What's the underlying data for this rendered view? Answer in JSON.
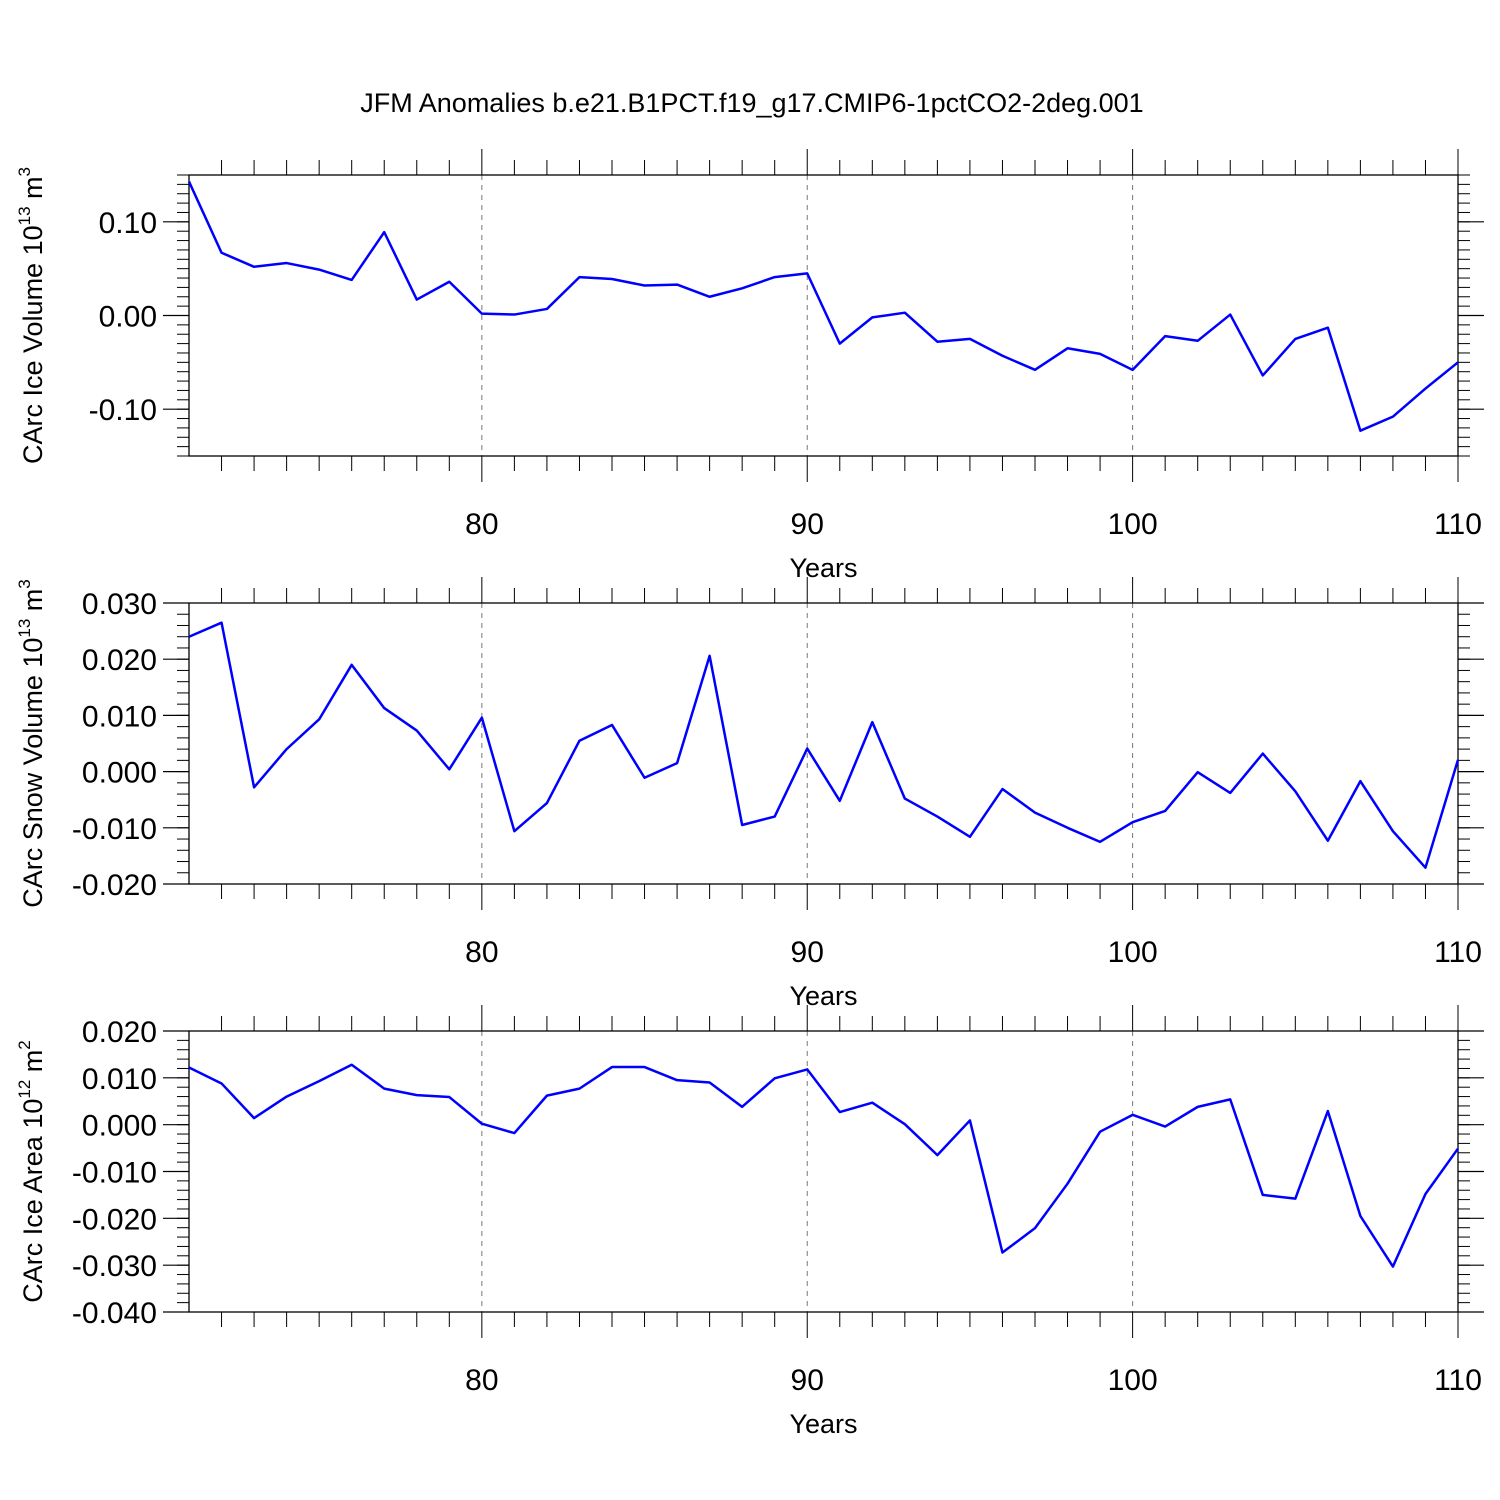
{
  "title": "JFM Anomalies b.e21.B1PCT.f19_g17.CMIP6-1pctCO2-2deg.001",
  "colors": {
    "line": "#0000ff",
    "axis": "#000000",
    "grid": "#777777"
  },
  "chart_data": [
    {
      "type": "line",
      "ylabel": "CArc Ice Volume 10",
      "ylabel_exp": "13",
      "ylabel_unit": " m",
      "ylabel_unit_exp": "3",
      "xlabel": "Years",
      "xlim": [
        71,
        110
      ],
      "ylim": [
        -0.15,
        0.15
      ],
      "xticks": [
        {
          "v": 80,
          "label": "80"
        },
        {
          "v": 90,
          "label": "90"
        },
        {
          "v": 100,
          "label": "100"
        },
        {
          "v": 110,
          "label": "110"
        }
      ],
      "yticks": [
        {
          "v": 0.1,
          "label": "0.10"
        },
        {
          "v": 0.0,
          "label": "0.00"
        },
        {
          "v": -0.1,
          "label": "-0.10"
        }
      ],
      "grid_x": [
        80,
        90,
        100
      ],
      "x": [
        71,
        72,
        73,
        74,
        75,
        76,
        77,
        78,
        79,
        80,
        81,
        82,
        83,
        84,
        85,
        86,
        87,
        88,
        89,
        90,
        91,
        92,
        93,
        94,
        95,
        96,
        97,
        98,
        99,
        100,
        101,
        102,
        103,
        104,
        105,
        106,
        107,
        108,
        109,
        110
      ],
      "series": [
        {
          "values": [
            0.143,
            0.067,
            0.052,
            0.056,
            0.049,
            0.038,
            0.089,
            0.017,
            0.036,
            0.002,
            0.001,
            0.007,
            0.041,
            0.039,
            0.032,
            0.033,
            0.02,
            0.029,
            0.041,
            0.045,
            -0.03,
            -0.002,
            0.003,
            -0.028,
            -0.025,
            -0.043,
            -0.058,
            -0.035,
            -0.041,
            -0.058,
            -0.022,
            -0.027,
            0.001,
            -0.064,
            -0.025,
            -0.013,
            -0.123,
            -0.108,
            -0.078,
            -0.05
          ]
        }
      ]
    },
    {
      "type": "line",
      "ylabel": "CArc Snow Volume 10",
      "ylabel_exp": "13",
      "ylabel_unit": " m",
      "ylabel_unit_exp": "3",
      "xlabel": "Years",
      "xlim": [
        71,
        110
      ],
      "ylim": [
        -0.02,
        0.03
      ],
      "xticks": [
        {
          "v": 80,
          "label": "80"
        },
        {
          "v": 90,
          "label": "90"
        },
        {
          "v": 100,
          "label": "100"
        },
        {
          "v": 110,
          "label": "110"
        }
      ],
      "yticks": [
        {
          "v": 0.03,
          "label": "0.030"
        },
        {
          "v": 0.02,
          "label": "0.020"
        },
        {
          "v": 0.01,
          "label": "0.010"
        },
        {
          "v": 0.0,
          "label": "0.000"
        },
        {
          "v": -0.01,
          "label": "-0.010"
        },
        {
          "v": -0.02,
          "label": "-0.020"
        }
      ],
      "grid_x": [
        80,
        90,
        100
      ],
      "x": [
        71,
        72,
        73,
        74,
        75,
        76,
        77,
        78,
        79,
        80,
        81,
        82,
        83,
        84,
        85,
        86,
        87,
        88,
        89,
        90,
        91,
        92,
        93,
        94,
        95,
        96,
        97,
        98,
        99,
        100,
        101,
        102,
        103,
        104,
        105,
        106,
        107,
        108,
        109,
        110
      ],
      "series": [
        {
          "values": [
            0.024,
            0.0265,
            -0.0028,
            0.004,
            0.0093,
            0.019,
            0.0113,
            0.0073,
            0.0004,
            0.0096,
            -0.0106,
            -0.0056,
            0.0055,
            0.0083,
            -0.0011,
            0.0015,
            0.0206,
            -0.0095,
            -0.008,
            0.0041,
            -0.0052,
            0.0088,
            -0.0048,
            -0.008,
            -0.0116,
            -0.0031,
            -0.0073,
            -0.01,
            -0.0125,
            -0.009,
            -0.007,
            -0.0001,
            -0.0038,
            0.0032,
            -0.0035,
            -0.0123,
            -0.0017,
            -0.0106,
            -0.0171,
            0.0021
          ]
        }
      ]
    },
    {
      "type": "line",
      "ylabel": "CArc Ice Area 10",
      "ylabel_exp": "12",
      "ylabel_unit": " m",
      "ylabel_unit_exp": "2",
      "xlabel": "Years",
      "xlim": [
        71,
        110
      ],
      "ylim": [
        -0.04,
        0.02
      ],
      "xticks": [
        {
          "v": 80,
          "label": "80"
        },
        {
          "v": 90,
          "label": "90"
        },
        {
          "v": 100,
          "label": "100"
        },
        {
          "v": 110,
          "label": "110"
        }
      ],
      "yticks": [
        {
          "v": 0.02,
          "label": "0.020"
        },
        {
          "v": 0.01,
          "label": "0.010"
        },
        {
          "v": 0.0,
          "label": "0.000"
        },
        {
          "v": -0.01,
          "label": "-0.010"
        },
        {
          "v": -0.02,
          "label": "-0.020"
        },
        {
          "v": -0.03,
          "label": "-0.030"
        },
        {
          "v": -0.04,
          "label": "-0.040"
        }
      ],
      "grid_x": [
        80,
        90,
        100
      ],
      "x": [
        71,
        72,
        73,
        74,
        75,
        76,
        77,
        78,
        79,
        80,
        81,
        82,
        83,
        84,
        85,
        86,
        87,
        88,
        89,
        90,
        91,
        92,
        93,
        94,
        95,
        96,
        97,
        98,
        99,
        100,
        101,
        102,
        103,
        104,
        105,
        106,
        107,
        108,
        109,
        110
      ],
      "series": [
        {
          "values": [
            0.0122,
            0.0088,
            0.0014,
            0.006,
            0.0093,
            0.0128,
            0.0077,
            0.0063,
            0.0059,
            0.0002,
            -0.0018,
            0.0062,
            0.0077,
            0.0123,
            0.0123,
            0.0095,
            0.009,
            0.0038,
            0.0099,
            0.0118,
            0.0027,
            0.0047,
            0.0001,
            -0.0065,
            0.0009,
            -0.0273,
            -0.0221,
            -0.0126,
            -0.0015,
            0.0021,
            -0.0004,
            0.0038,
            0.0054,
            -0.015,
            -0.0158,
            0.0029,
            -0.0195,
            -0.0303,
            -0.0148,
            -0.0051
          ]
        }
      ]
    }
  ]
}
